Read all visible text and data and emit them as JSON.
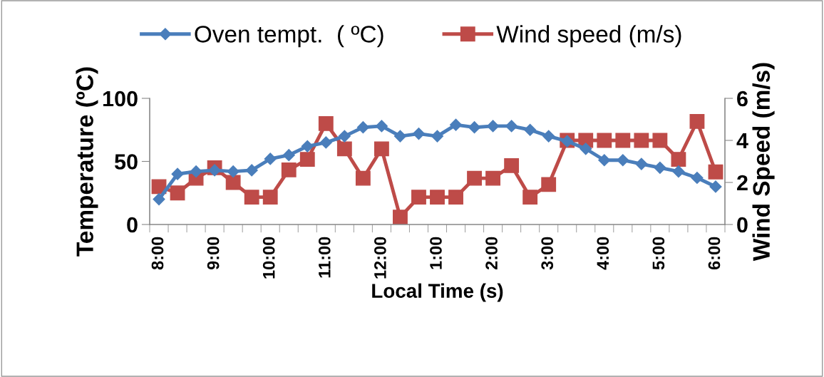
{
  "chart_data": {
    "type": "line",
    "xlabel": "Local Time (s)",
    "ylabel": "Temperature (ºC)",
    "y2label": "Wind Speed (m/s)",
    "categories": [
      "8:00",
      null,
      null,
      "9:00",
      null,
      null,
      "10:00",
      null,
      null,
      "11:00",
      null,
      null,
      "12:00",
      null,
      null,
      "1:00",
      null,
      null,
      "2:00",
      null,
      null,
      "3:00",
      null,
      null,
      "4:00",
      null,
      null,
      "5:00",
      null,
      null,
      "6:00"
    ],
    "series": [
      {
        "name": "Oven tempt.  ( ºC)",
        "color": "#4a7ebb",
        "marker": "diamond",
        "values": [
          20,
          40,
          42,
          43,
          42,
          43,
          52,
          55,
          62,
          65,
          70,
          77,
          78,
          70,
          72,
          70,
          79,
          77,
          78,
          78,
          75,
          70,
          66,
          60,
          51,
          51,
          48,
          45,
          42,
          37,
          30
        ]
      },
      {
        "name": "Wind speed (m/s)",
        "color": "#be4b48",
        "marker": "square",
        "axis": "y2",
        "values": [
          1.8,
          1.5,
          2.2,
          2.7,
          2.0,
          1.3,
          1.3,
          2.6,
          3.1,
          4.8,
          3.6,
          2.2,
          3.6,
          0.35,
          1.3,
          1.3,
          1.3,
          2.2,
          2.2,
          2.8,
          1.3,
          1.9,
          4.0,
          4.0,
          4.0,
          4.0,
          4.0,
          4.0,
          3.1,
          4.9,
          2.5
        ]
      }
    ],
    "ylim": [
      0,
      100
    ],
    "yticks": [
      0,
      50,
      100
    ],
    "y2lim": [
      0,
      6
    ],
    "y2ticks": [
      0,
      2,
      4,
      6
    ],
    "grid": false,
    "legend": "top",
    "line_style": "solid"
  }
}
